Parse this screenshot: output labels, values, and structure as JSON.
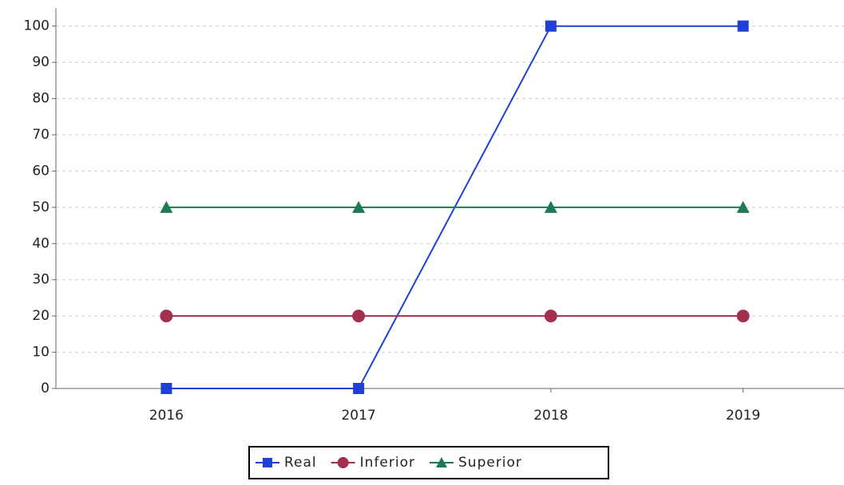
{
  "chart_data": {
    "type": "line",
    "categories": [
      "2016",
      "2017",
      "2018",
      "2019"
    ],
    "series": [
      {
        "name": "Real",
        "color": "#1f3fd6",
        "marker": "square",
        "values": [
          0,
          0,
          100,
          100
        ]
      },
      {
        "name": "Inferior",
        "color": "#a3304c",
        "marker": "circle",
        "values": [
          20,
          20,
          20,
          20
        ]
      },
      {
        "name": "Superior",
        "color": "#1e7a50",
        "marker": "triangle",
        "values": [
          50,
          50,
          50,
          50
        ]
      }
    ],
    "ylim": [
      0,
      105
    ],
    "yticks": [
      0,
      10,
      20,
      30,
      40,
      50,
      60,
      70,
      80,
      90,
      100
    ],
    "grid": true,
    "legend": "bottom"
  }
}
